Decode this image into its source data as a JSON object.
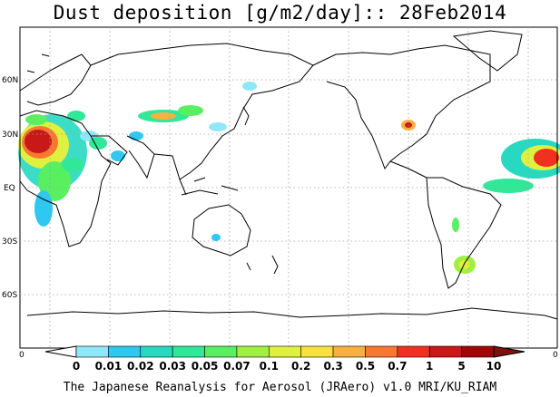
{
  "title": "Dust deposition [g/m2/day]:: 28Feb2014",
  "footer": "The Japanese Reanalysis for Aerosol (JRAero) v1.0 MRI/KU_RIAM",
  "latitude_labels": [
    "60N",
    "30N",
    "EQ",
    "30S",
    "60S"
  ],
  "axis_zero_left": "0",
  "axis_zero_right": "0",
  "colorbar": {
    "labels": [
      "0",
      "0.01",
      "0.02",
      "0.03",
      "0.05",
      "0.07",
      "0.1",
      "0.2",
      "0.3",
      "0.5",
      "0.7",
      "1",
      "5",
      "10"
    ],
    "colors": [
      "#ffffff",
      "#8ee8f8",
      "#2ec8f0",
      "#28d8c0",
      "#30e898",
      "#58f060",
      "#a0f040",
      "#e0f040",
      "#f8e040",
      "#f8b040",
      "#f87830",
      "#f03020",
      "#c81818",
      "#a00808",
      "#801010"
    ]
  },
  "colors": {
    "coastline": "#000000",
    "grid": "#a0a0a0",
    "background": "#ffffff"
  }
}
